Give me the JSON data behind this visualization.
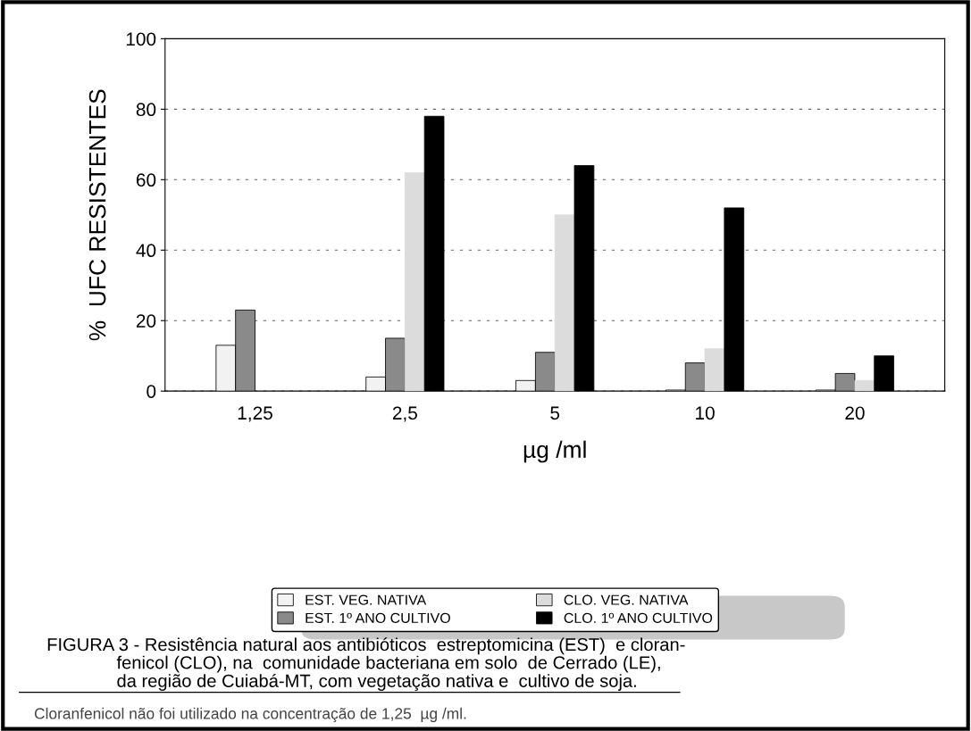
{
  "chart_data": {
    "type": "bar",
    "ylabel": "%  UFC RESISTENTES",
    "xlabel": "µg /ml",
    "categories": [
      "1,25",
      "2,5",
      "5",
      "10",
      "20"
    ],
    "series": [
      {
        "name": "EST. VEG. NATIVA",
        "color": "#f2f2f2",
        "values": [
          13,
          4,
          3,
          0.3,
          0.3
        ]
      },
      {
        "name": "EST. 1º ANO CULTIVO",
        "color": "#8a8a8a",
        "values": [
          23,
          15,
          11,
          8,
          5
        ]
      },
      {
        "name": "CLO. VEG. NATIVA",
        "color": "#dcdcdc",
        "values": [
          null,
          62,
          50,
          12,
          3
        ]
      },
      {
        "name": "CLO. 1º ANO CULTIVO",
        "color": "#000000",
        "values": [
          null,
          78,
          64,
          52,
          10
        ]
      }
    ],
    "ylim": [
      0,
      100
    ],
    "yticks": [
      0,
      20,
      40,
      60,
      80,
      100
    ],
    "grid": "y",
    "legend": "bottom",
    "annotations": [
      "FIGURA 3 - Resistência natural aos antibióticos  estreptomicina (EST)  e cloran-\n              fenicol (CLO), na  comunidade bacteriana em solo  de Cerrado (LE),\n              da região de Cuiabá-MT, com vegetação nativa e  cultivo de soja.",
      "Cloranfenicol não foi utilizado na concentração de 1,25  µg /ml."
    ]
  }
}
